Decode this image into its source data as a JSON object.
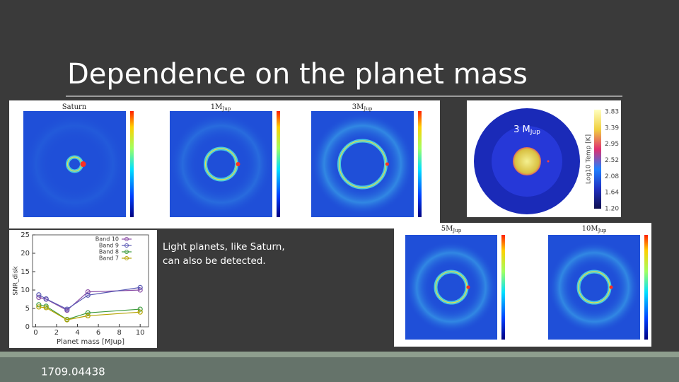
{
  "slide": {
    "title": "Dependence on the planet mass",
    "caption": "Light planets, like Saturn, can also be detected.",
    "reference": "1709.04438"
  },
  "panels": [
    {
      "mass": "Saturn",
      "unit": ""
    },
    {
      "mass": "1M",
      "unit": "Jup"
    },
    {
      "mass": "3M",
      "unit": "Jup"
    },
    {
      "mass": "5M",
      "unit": "Jup"
    },
    {
      "mass": "10M",
      "unit": "Jup"
    }
  ],
  "temperature_map": {
    "label": {
      "mass": "3 M",
      "unit": "Jup"
    },
    "colorbar_label": "Log10 Temp [K]",
    "colorbar_ticks": [
      "3.83",
      "3.39",
      "2.95",
      "2.52",
      "2.08",
      "1.64",
      "1.20"
    ]
  },
  "chart_data": {
    "type": "line",
    "xlabel": "Planet mass [MJup]",
    "ylabel": "SNR_disk",
    "x": [
      0.3,
      1,
      3,
      5,
      10
    ],
    "xlim": [
      -0.3,
      10.8
    ],
    "ylim": [
      0,
      25
    ],
    "xticks": [
      0,
      2,
      4,
      6,
      8,
      10
    ],
    "yticks": [
      0,
      5,
      10,
      15,
      20,
      25
    ],
    "legend": "top-right",
    "series": [
      {
        "name": "Band 10",
        "color": "#8b4ea6",
        "values": [
          8,
          7.5,
          4.5,
          9.5,
          10
        ]
      },
      {
        "name": "Band 9",
        "color": "#5a5ab4",
        "values": [
          8.7,
          7.6,
          4.8,
          8.6,
          10.7
        ]
      },
      {
        "name": "Band 8",
        "color": "#3c9a3c",
        "values": [
          6,
          5.6,
          2,
          3.8,
          4.8
        ]
      },
      {
        "name": "Band 7",
        "color": "#b5a300",
        "values": [
          5.4,
          5.2,
          1.9,
          3,
          4
        ]
      }
    ]
  }
}
